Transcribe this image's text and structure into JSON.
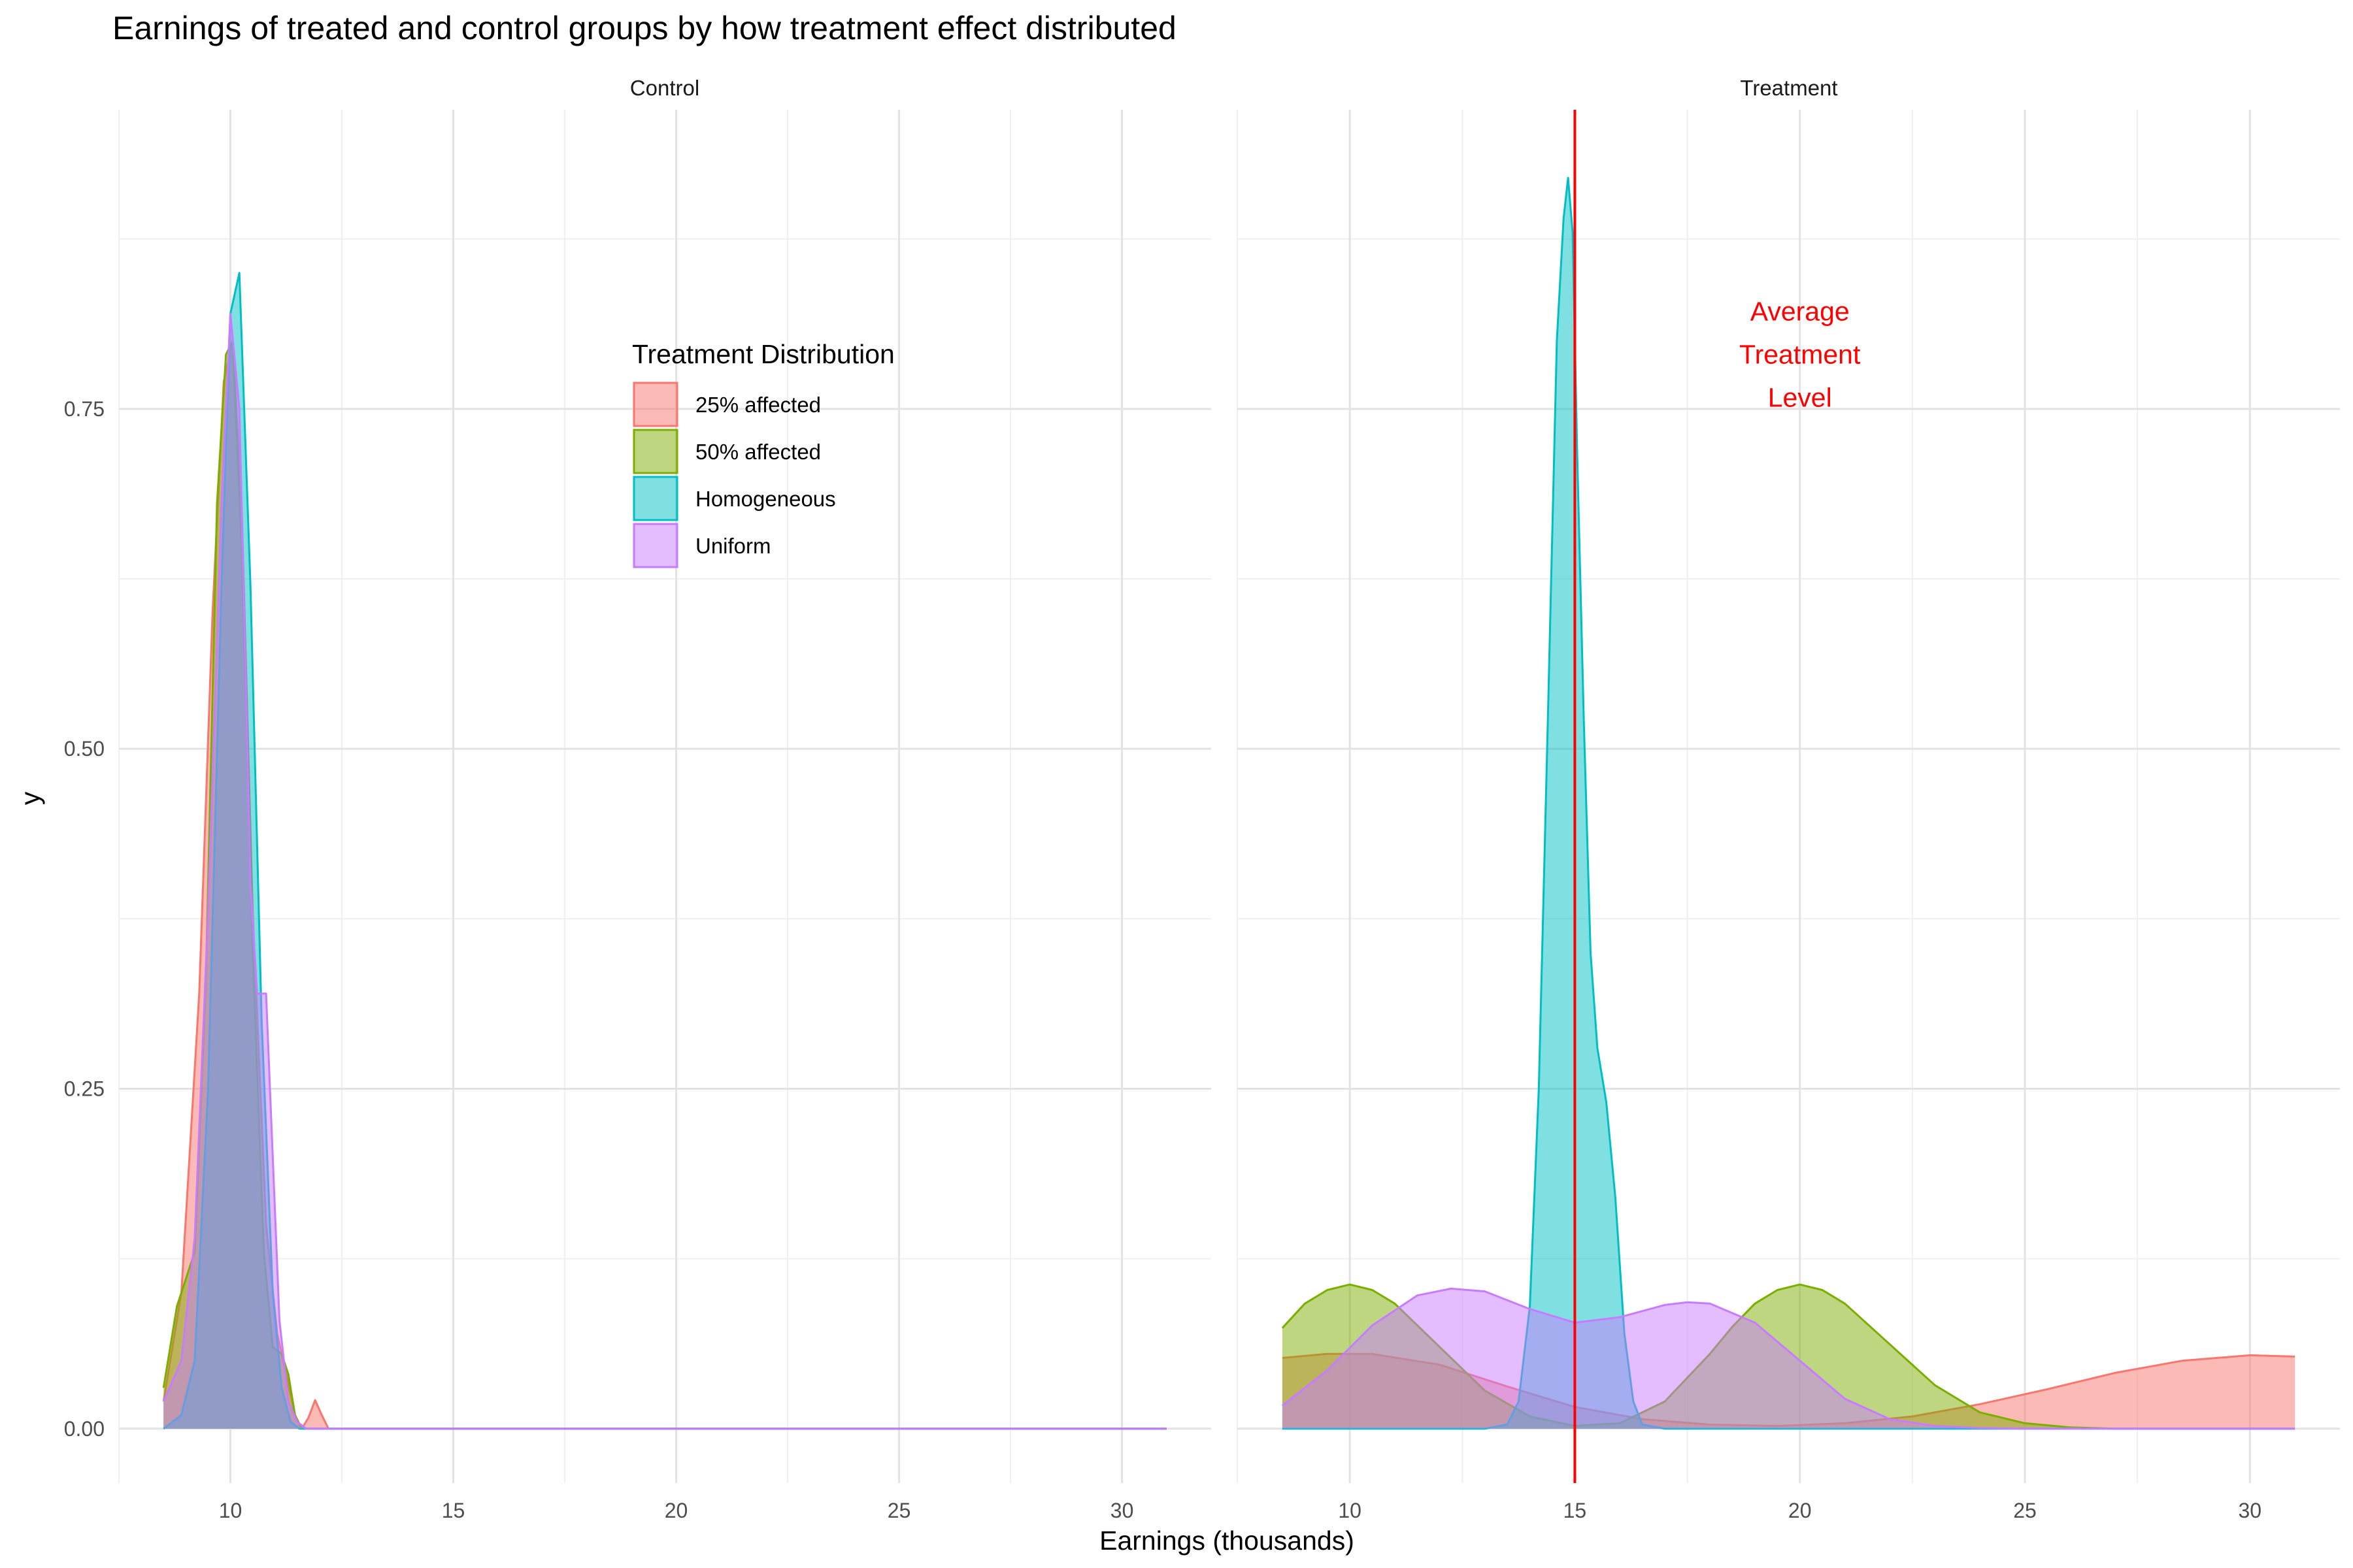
{
  "chart_data": {
    "type": "area",
    "title": "Earnings of treated and control groups by how treatment effect distributed",
    "xlabel": "Earnings (thousands)",
    "ylabel": "y",
    "xlim": [
      7.5,
      32.0
    ],
    "ylim": [
      -0.04,
      0.97
    ],
    "x_ticks": [
      10,
      15,
      20,
      25,
      30
    ],
    "y_ticks": [
      0.0,
      0.25,
      0.5,
      0.75
    ],
    "y_tick_labels": [
      "0.00",
      "0.25",
      "0.50",
      "0.75"
    ],
    "grid": true,
    "legend": {
      "title": "Treatment Distribution",
      "position": "inside-top-left-panel",
      "entries": [
        "25% affected",
        "50% affected",
        "Homogeneous",
        "Uniform"
      ]
    },
    "colors": {
      "25% affected": "#F8766D",
      "50% affected": "#7CAE00",
      "Homogeneous": "#00BFC4",
      "Uniform": "#C77CFF"
    },
    "panels": [
      {
        "name": "Control",
        "series": [
          {
            "name": "25% affected",
            "x": [
              8.5,
              8.9,
              9.3,
              9.6,
              9.85,
              10.05,
              10.25,
              10.5,
              10.8,
              11.05,
              11.25,
              11.45,
              11.6,
              11.75,
              11.9,
              12.05,
              12.2,
              12.35,
              31.0
            ],
            "y": [
              0.02,
              0.1,
              0.32,
              0.6,
              0.77,
              0.8,
              0.68,
              0.38,
              0.15,
              0.07,
              0.04,
              0.01,
              0.0,
              0.008,
              0.021,
              0.01,
              0.0,
              0.0,
              0.0
            ]
          },
          {
            "name": "50% affected",
            "x": [
              8.5,
              8.8,
              9.0,
              9.2,
              9.45,
              9.7,
              9.9,
              10.05,
              10.25,
              10.5,
              10.75,
              10.95,
              11.15,
              11.3,
              11.45,
              11.6,
              31.0
            ],
            "y": [
              0.03,
              0.09,
              0.11,
              0.13,
              0.33,
              0.68,
              0.79,
              0.8,
              0.65,
              0.35,
              0.13,
              0.06,
              0.055,
              0.04,
              0.01,
              0.0,
              0.0
            ]
          },
          {
            "name": "Homogeneous",
            "x": [
              8.5,
              8.9,
              9.2,
              9.5,
              9.8,
              10.0,
              10.2,
              10.45,
              10.7,
              10.95,
              11.15,
              11.35,
              11.55,
              31.0
            ],
            "y": [
              0.0,
              0.01,
              0.05,
              0.25,
              0.62,
              0.82,
              0.85,
              0.62,
              0.3,
              0.1,
              0.03,
              0.005,
              0.0,
              0.0
            ]
          },
          {
            "name": "Uniform",
            "x": [
              8.5,
              8.9,
              9.2,
              9.5,
              9.8,
              10.0,
              10.2,
              10.45,
              10.6,
              10.8,
              10.95,
              11.1,
              11.3,
              11.5,
              11.7,
              31.0
            ],
            "y": [
              0.02,
              0.05,
              0.14,
              0.38,
              0.68,
              0.82,
              0.75,
              0.4,
              0.32,
              0.32,
              0.2,
              0.08,
              0.02,
              0.005,
              0.0,
              0.0
            ]
          }
        ]
      },
      {
        "name": "Treatment",
        "vline": {
          "x": 15,
          "color": "#FF0000"
        },
        "annotation": {
          "lines": [
            "Average",
            "Treatment",
            "Level"
          ],
          "x": 20,
          "y": 0.79
        },
        "series": [
          {
            "name": "25% affected",
            "x": [
              8.5,
              9.5,
              10.5,
              12.0,
              13.5,
              15.0,
              16.5,
              18.0,
              19.5,
              21.0,
              22.5,
              24.0,
              25.5,
              27.0,
              28.5,
              30.0,
              31.0
            ],
            "y": [
              0.052,
              0.055,
              0.055,
              0.047,
              0.031,
              0.016,
              0.007,
              0.003,
              0.002,
              0.004,
              0.009,
              0.018,
              0.029,
              0.041,
              0.05,
              0.054,
              0.053
            ]
          },
          {
            "name": "50% affected",
            "x": [
              8.5,
              9.0,
              9.5,
              10.0,
              10.5,
              11.0,
              12.0,
              13.0,
              14.0,
              15.0,
              16.0,
              17.0,
              18.0,
              18.5,
              19.0,
              19.5,
              20.0,
              20.5,
              21.0,
              22.0,
              23.0,
              24.0,
              25.0,
              26.0,
              27.0,
              31.0
            ],
            "y": [
              0.074,
              0.092,
              0.102,
              0.106,
              0.102,
              0.092,
              0.06,
              0.028,
              0.009,
              0.002,
              0.004,
              0.02,
              0.055,
              0.075,
              0.092,
              0.102,
              0.106,
              0.102,
              0.092,
              0.062,
              0.032,
              0.012,
              0.004,
              0.001,
              0.0,
              0.0
            ]
          },
          {
            "name": "Homogeneous",
            "x": [
              8.5,
              13.0,
              13.5,
              13.75,
              14.0,
              14.2,
              14.4,
              14.6,
              14.75,
              14.85,
              14.95,
              15.05,
              15.2,
              15.35,
              15.5,
              15.7,
              15.9,
              16.1,
              16.3,
              16.5,
              17.0,
              31.0
            ],
            "y": [
              0.0,
              0.0,
              0.003,
              0.02,
              0.09,
              0.25,
              0.52,
              0.8,
              0.89,
              0.92,
              0.88,
              0.72,
              0.52,
              0.35,
              0.28,
              0.24,
              0.17,
              0.07,
              0.02,
              0.003,
              0.0,
              0.0
            ]
          },
          {
            "name": "Uniform",
            "x": [
              8.5,
              9.5,
              10.5,
              11.5,
              12.25,
              13.0,
              14.0,
              15.0,
              16.0,
              17.0,
              17.5,
              18.0,
              19.0,
              20.0,
              21.0,
              22.0,
              23.0,
              24.0,
              25.0,
              26.0,
              31.0
            ],
            "y": [
              0.017,
              0.043,
              0.076,
              0.098,
              0.103,
              0.101,
              0.088,
              0.078,
              0.082,
              0.091,
              0.093,
              0.092,
              0.078,
              0.05,
              0.022,
              0.007,
              0.002,
              0.0005,
              0.0,
              0.0,
              0.0
            ]
          }
        ]
      }
    ]
  }
}
